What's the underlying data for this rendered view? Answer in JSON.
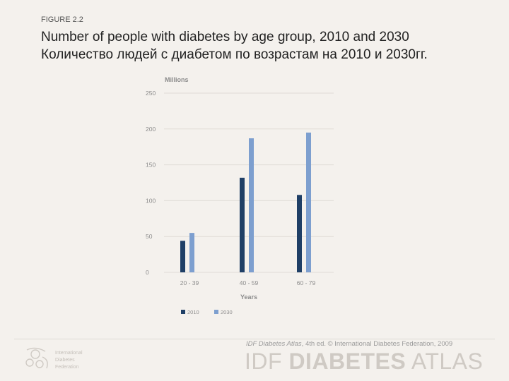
{
  "figure_label": "FIGURE 2.2",
  "title_en": "Number of people with diabetes by age group, 2010 and 2030",
  "title_ru": "Количество людей с диабетом по возрастам на 2010 и 2030гг.",
  "colors": {
    "series_2010": "#1f3f66",
    "series_2030": "#7d9fcf",
    "grid": "#e0dcd6",
    "axis_text": "#8c8c8c"
  },
  "chart_data": {
    "type": "bar",
    "title": "",
    "ylabel": "Millions",
    "xlabel": "Years",
    "ylim": [
      0,
      250
    ],
    "yticks": [
      "250",
      "200",
      "150",
      "100",
      "50",
      "0"
    ],
    "categories": [
      "20 - 39",
      "40 - 59",
      "60 - 79"
    ],
    "series": [
      {
        "name": "2010",
        "values": [
          44,
          132,
          108
        ]
      },
      {
        "name": "2030",
        "values": [
          55,
          187,
          195
        ]
      }
    ],
    "grid": true,
    "legend": "bottom-left"
  },
  "footer": {
    "credit_title": "IDF Diabetes Atlas",
    "credit_rest": ", 4th ed. © International Diabetes Federation, 2009",
    "brand_idf": "IDF",
    "brand_diabetes": "DIABETES",
    "brand_atlas": "ATLAS",
    "logo_line1": "International",
    "logo_line2": "Diabetes",
    "logo_line3": "Federation"
  }
}
